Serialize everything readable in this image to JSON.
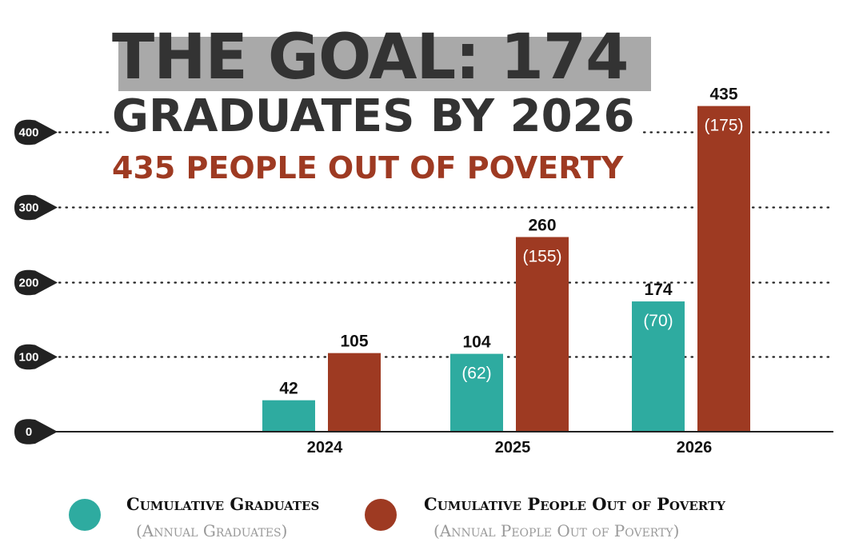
{
  "title": {
    "line1": "THE GOAL: 174",
    "line2": "GRADUATES BY 2026",
    "line3": "435 PEOPLE OUT OF POVERTY"
  },
  "colors": {
    "graduates": "#2eaba0",
    "poverty": "#9e3a22",
    "title_text": "#333333",
    "title_band": "#a9a9a9",
    "axis_marker": "#222222"
  },
  "legend": {
    "graduates": {
      "main": "Cumulative Graduates",
      "sub": "(Annual Graduates)"
    },
    "poverty": {
      "main": "Cumulative People Out of Poverty",
      "sub": "(Annual People Out of Poverty)"
    }
  },
  "chart_data": {
    "type": "bar",
    "categories": [
      "2024",
      "2025",
      "2026"
    ],
    "series": [
      {
        "name": "Cumulative Graduates",
        "values": [
          42,
          104,
          174
        ],
        "annual": [
          null,
          62,
          70
        ]
      },
      {
        "name": "Cumulative People Out of Poverty",
        "values": [
          105,
          260,
          435
        ],
        "annual": [
          null,
          155,
          175
        ]
      }
    ],
    "y_ticks": [
      0,
      100,
      200,
      300,
      400
    ],
    "ylim": [
      0,
      435
    ],
    "grid": "dotted horizontal",
    "legend_position": "bottom"
  }
}
